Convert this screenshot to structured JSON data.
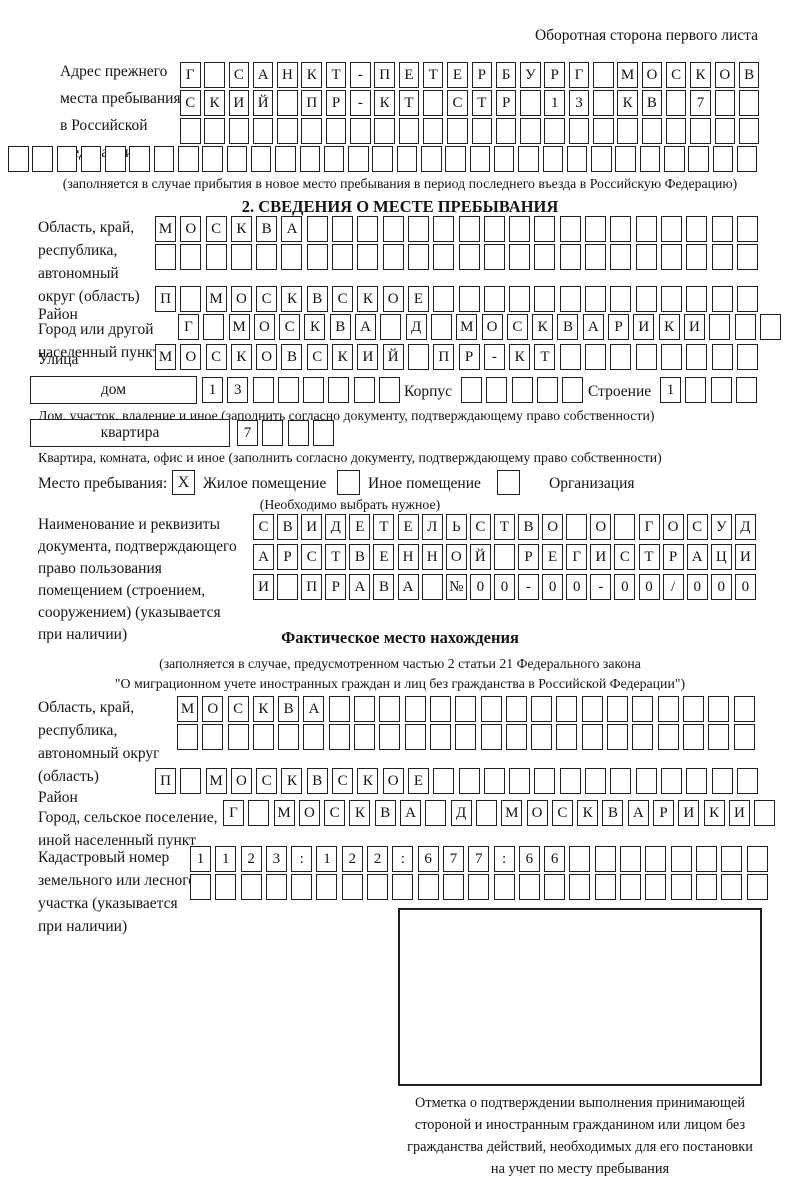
{
  "header": {
    "note": "Оборотная сторона первого листа"
  },
  "prev_address": {
    "label_lines": [
      "Адрес прежнего",
      "места пребывания",
      "в Российской",
      "Федерации"
    ],
    "row1": {
      "len": 24,
      "chars": "Г САНКТ-ПЕТЕРБУРГ МОСКОВ"
    },
    "row2": {
      "len": 24,
      "chars": "СКИЙ ПР-КТ СТР 13 КВ 7"
    },
    "row3": {
      "len": 24,
      "chars": ""
    },
    "row4": {
      "len": 31,
      "chars": ""
    },
    "note": "(заполняется в случае прибытия в новое место пребывания в период последнего въезда в Российскую Федерацию)"
  },
  "section2": {
    "title": "2. СВЕДЕНИЯ О МЕСТЕ ПРЕБЫВАНИЯ",
    "oblast": {
      "label_lines": [
        "Область, край,",
        "республика,",
        "автономный",
        "округ (область)"
      ],
      "row1": {
        "len": 24,
        "chars": "МОСКВА"
      },
      "row2": {
        "len": 24,
        "chars": ""
      }
    },
    "raion": {
      "label": "Район",
      "row": {
        "len": 24,
        "chars": "П МОСКВСКОЕ"
      }
    },
    "gorod": {
      "label_lines": [
        "Город или другой",
        "населенный пункт"
      ],
      "row": {
        "len": 24,
        "chars": "Г МОСКВА Д МОСКВАРИКИ"
      }
    },
    "ulitsa": {
      "label": "Улица",
      "row": {
        "len": 24,
        "chars": "МОСКОВСКИЙ ПР-КТ"
      }
    },
    "dom": {
      "label": "дом",
      "row": {
        "len": 8,
        "chars": "13"
      },
      "korpus_label": "Корпус",
      "korpus_row": {
        "len": 5,
        "chars": ""
      },
      "stroenie_label": "Строение",
      "stroenie_row": {
        "len": 4,
        "chars": "1"
      },
      "note": "Дом, участок, владение и иное (заполнить согласно документу, подтверждающему право собственности)"
    },
    "kvartira": {
      "label": "квартира",
      "row": {
        "len": 4,
        "chars": "7"
      },
      "note": "Квартира, комната, офис и иное (заполнить согласно документу, подтверждающему право собственности)"
    },
    "mesto": {
      "label": "Место пребывания:",
      "options": [
        {
          "label": "Жилое помещение",
          "value": "X"
        },
        {
          "label": "Иное помещение",
          "value": ""
        },
        {
          "label": "Организация",
          "value": ""
        }
      ],
      "note": "(Необходимо выбрать нужное)"
    },
    "doc": {
      "label_lines": [
        "Наименование и реквизиты",
        "документа, подтверждающего",
        "право пользования",
        "помещением (строением,",
        "сооружением) (указывается",
        "при наличии)"
      ],
      "row1": {
        "len": 21,
        "chars": "СВИДЕТЕЛЬСТВО О ГОСУД"
      },
      "row2": {
        "len": 21,
        "chars": "АРСТВЕННОЙ РЕГИСТРАЦИ"
      },
      "row3": {
        "len": 21,
        "chars": "И ПРАВА №00-00-00/000"
      }
    }
  },
  "fact": {
    "title": "Фактическое место нахождения",
    "note_lines": [
      "(заполняется в случае, предусмотренном частью 2 статьи 21 Федерального закона",
      "\"О миграционном учете иностранных граждан и лиц без гражданства в Российской Федерации\")"
    ],
    "oblast": {
      "label_lines": [
        "Область, край,",
        "республика,",
        "автономный округ",
        "(область)"
      ],
      "row1": {
        "len": 23,
        "chars": "МОСКВА"
      },
      "row2": {
        "len": 23,
        "chars": ""
      }
    },
    "raion": {
      "label": "Район",
      "row": {
        "len": 24,
        "chars": "П МОСКВСКОЕ"
      }
    },
    "gorod": {
      "label_lines": [
        "Город, сельское поселение,",
        "иной населенный пункт"
      ],
      "row": {
        "len": 22,
        "chars": "Г МОСКВА Д МОСКВАРИКИ"
      }
    },
    "kadastr": {
      "label_lines": [
        "Кадастровый номер",
        "земельного или лесного",
        "участка (указывается",
        "при наличии)"
      ],
      "row1": {
        "len": 23,
        "chars": "1123:122:677:66"
      },
      "row2": {
        "len": 23,
        "chars": ""
      }
    },
    "stamp_note_lines": [
      "Отметка о подтверждении выполнения принимающей",
      "стороной и иностранным гражданином или лицом без",
      "гражданства действий, необходимых для его постановки",
      "на учет по месту пребывания"
    ]
  }
}
